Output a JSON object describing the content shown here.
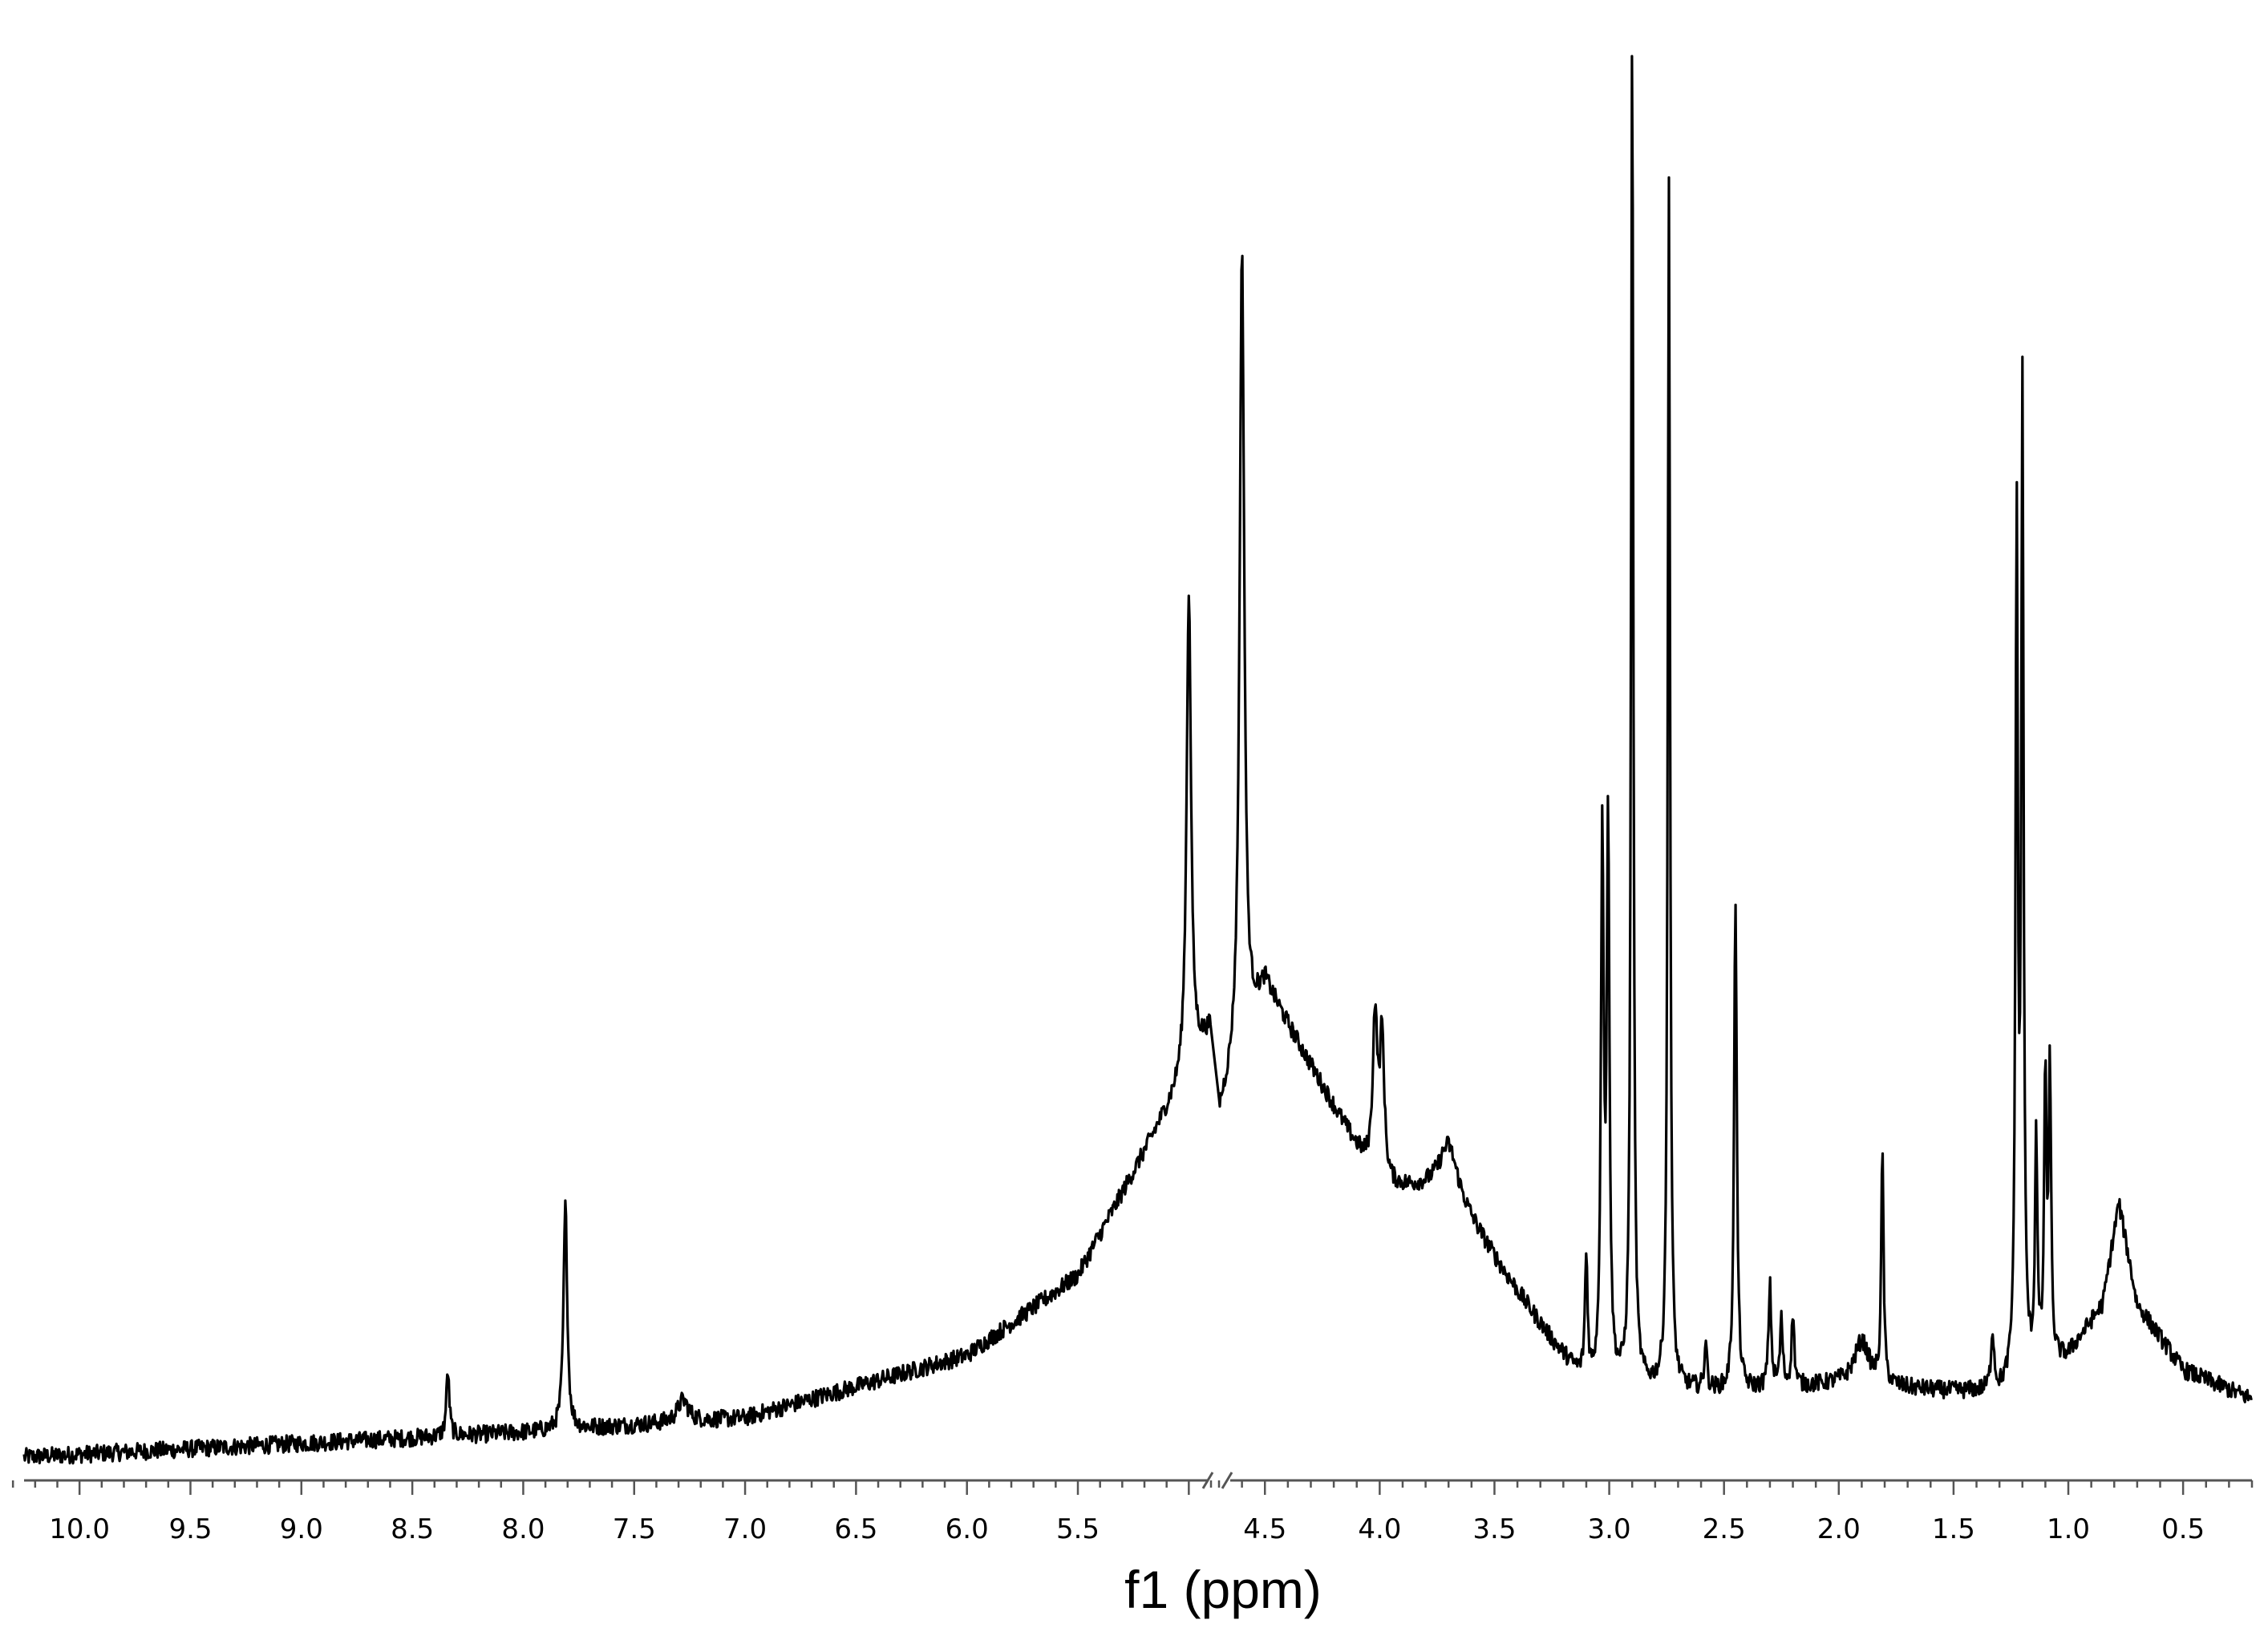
{
  "chart_data": {
    "type": "line",
    "title": "",
    "xlabel": "f1 (ppm)",
    "ylabel": "",
    "x_axis_reversed": true,
    "x_axis_break": [
      4.9,
      4.7
    ],
    "xlim": [
      10.25,
      0.2
    ],
    "ylim": [
      0,
      1
    ],
    "grid": false,
    "legend": "none",
    "x_ticks": [
      "10.0",
      "9.5",
      "9.0",
      "8.5",
      "8.0",
      "7.5",
      "7.0",
      "6.5",
      "6.0",
      "5.5",
      "4.5",
      "4.0",
      "3.5",
      "3.0",
      "2.5",
      "2.0",
      "1.5",
      "1.0",
      "0.5"
    ],
    "baseline": {
      "x": [
        10.25,
        8.0,
        7.0,
        6.0,
        5.5,
        4.9,
        4.7,
        4.5,
        4.0,
        3.7,
        3.45,
        3.25,
        3.1,
        2.5,
        2.0,
        1.5,
        1.3,
        1.0,
        0.85,
        0.78,
        0.7,
        0.5,
        0.2
      ],
      "y": [
        0.005,
        0.022,
        0.032,
        0.075,
        0.13,
        0.3,
        0.24,
        0.33,
        0.19,
        0.19,
        0.13,
        0.085,
        0.055,
        0.05,
        0.055,
        0.05,
        0.05,
        0.075,
        0.11,
        0.18,
        0.11,
        0.065,
        0.045
      ]
    },
    "peaks": [
      {
        "x": 8.34,
        "height": 0.045,
        "width": 0.008
      },
      {
        "x": 7.81,
        "height": 0.155,
        "width": 0.01
      },
      {
        "x": 7.28,
        "height": 0.015,
        "width": 0.03
      },
      {
        "x": 5.0,
        "height": 0.33,
        "width": 0.012
      },
      {
        "x": 4.6,
        "height": 0.55,
        "width": 0.012
      },
      {
        "x": 4.02,
        "height": 0.11,
        "width": 0.012
      },
      {
        "x": 3.99,
        "height": 0.1,
        "width": 0.012
      },
      {
        "x": 3.7,
        "height": 0.03,
        "width": 0.05
      },
      {
        "x": 3.1,
        "height": 0.085,
        "width": 0.007
      },
      {
        "x": 3.03,
        "height": 0.375,
        "width": 0.007
      },
      {
        "x": 3.005,
        "height": 0.38,
        "width": 0.007
      },
      {
        "x": 2.9,
        "height": 0.94,
        "width": 0.006
      },
      {
        "x": 2.74,
        "height": 0.83,
        "width": 0.006
      },
      {
        "x": 2.58,
        "height": 0.035,
        "width": 0.006
      },
      {
        "x": 2.45,
        "height": 0.34,
        "width": 0.007
      },
      {
        "x": 2.3,
        "height": 0.07,
        "width": 0.007
      },
      {
        "x": 2.25,
        "height": 0.045,
        "width": 0.007
      },
      {
        "x": 2.2,
        "height": 0.05,
        "width": 0.007
      },
      {
        "x": 1.9,
        "height": 0.03,
        "width": 0.04
      },
      {
        "x": 1.81,
        "height": 0.16,
        "width": 0.006
      },
      {
        "x": 1.33,
        "height": 0.04,
        "width": 0.008
      },
      {
        "x": 1.225,
        "height": 0.59,
        "width": 0.006
      },
      {
        "x": 1.2,
        "height": 0.67,
        "width": 0.006
      },
      {
        "x": 1.14,
        "height": 0.16,
        "width": 0.006
      },
      {
        "x": 1.1,
        "height": 0.2,
        "width": 0.006
      },
      {
        "x": 1.08,
        "height": 0.2,
        "width": 0.006
      }
    ]
  }
}
